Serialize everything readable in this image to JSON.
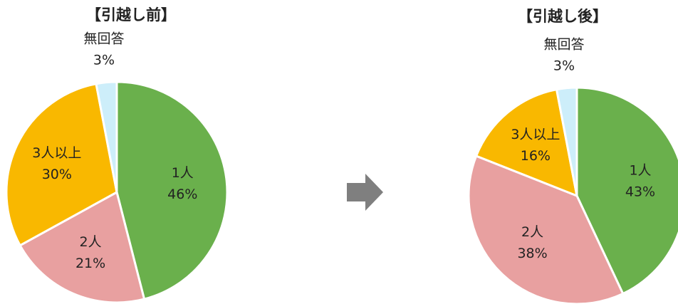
{
  "chart_data": [
    {
      "type": "pie",
      "title": "【引越し前】",
      "categories": [
        "1人",
        "2人",
        "3人以上",
        "無回答"
      ],
      "values": [
        46,
        21,
        30,
        3
      ],
      "value_labels": [
        "46%",
        "21%",
        "30%",
        "3%"
      ],
      "colors": [
        "#6ab04c",
        "#e8a0a0",
        "#f9b800",
        "#cdeefa"
      ]
    },
    {
      "type": "pie",
      "title": "【引越し後】",
      "categories": [
        "1人",
        "2人",
        "3人以上",
        "無回答"
      ],
      "values": [
        43,
        38,
        16,
        3
      ],
      "value_labels": [
        "43%",
        "38%",
        "16%",
        "3%"
      ],
      "colors": [
        "#6ab04c",
        "#e8a0a0",
        "#f9b800",
        "#cdeefa"
      ]
    }
  ]
}
